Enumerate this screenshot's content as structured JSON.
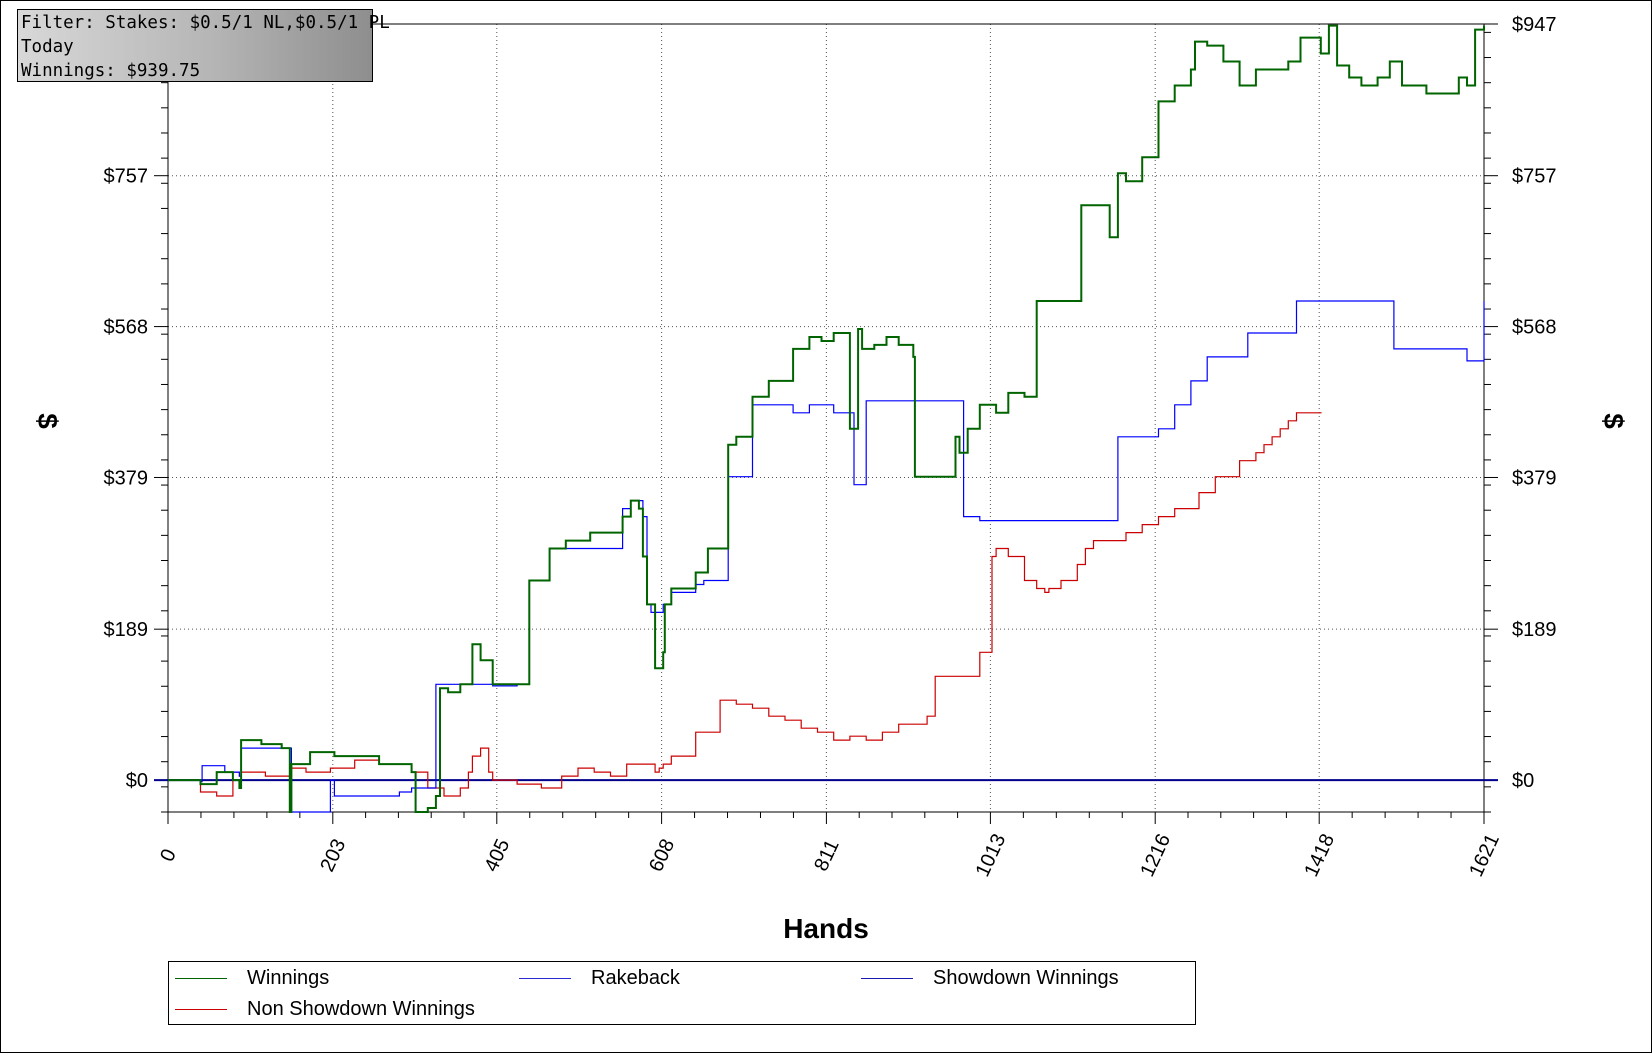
{
  "filter": {
    "line1": "Filter: Stakes: $0.5/1 NL,$0.5/1 PL",
    "line2": "Today",
    "line3": "Winnings: $939.75"
  },
  "colors": {
    "winnings": "#006400",
    "rakeback": "#0000ff",
    "showdown": "#1a1ab0",
    "non_showdown": "#cc0000",
    "zero_line": "#00008b",
    "grid": "#555555"
  },
  "legend": [
    {
      "label": "Winnings",
      "color": "#006400"
    },
    {
      "label": "Rakeback",
      "color": "#2a2ad0"
    },
    {
      "label": "Showdown Winnings",
      "color": "#1a1ab0"
    },
    {
      "label": "Non Showdown Winnings",
      "color": "#cc0000"
    }
  ],
  "chart_data": {
    "type": "line",
    "title": "",
    "xlabel": "Hands",
    "ylabel": "$",
    "xlim": [
      0,
      1621
    ],
    "ylim": [
      -40,
      947
    ],
    "x_ticks": [
      0,
      203,
      405,
      608,
      811,
      1013,
      1216,
      1418,
      1621
    ],
    "y_ticks": [
      0,
      189,
      379,
      568,
      757,
      947
    ],
    "y_tick_labels": [
      "$0",
      "$189",
      "$379",
      "$568",
      "$757",
      "$947"
    ],
    "grid": true,
    "legend_position": "bottom",
    "series": [
      {
        "name": "Winnings",
        "x": [
          0,
          40,
          60,
          80,
          88,
          90,
          115,
          140,
          150,
          152,
          175,
          205,
          260,
          300,
          305,
          320,
          330,
          335,
          345,
          360,
          375,
          385,
          400,
          430,
          445,
          470,
          490,
          520,
          560,
          570,
          580,
          585,
          590,
          600,
          610,
          612,
          620,
          650,
          665,
          690,
          700,
          720,
          740,
          770,
          790,
          805,
          820,
          840,
          850,
          855,
          870,
          885,
          900,
          918,
          920,
          970,
          975,
          985,
          1000,
          1020,
          1035,
          1055,
          1070,
          1105,
          1110,
          1125,
          1160,
          1170,
          1180,
          1190,
          1200,
          1220,
          1240,
          1260,
          1265,
          1280,
          1300,
          1320,
          1340,
          1380,
          1395,
          1420,
          1430,
          1440,
          1455,
          1470,
          1490,
          1505,
          1520,
          1550,
          1580,
          1590,
          1600,
          1610,
          1621
        ],
        "y": [
          0,
          -5,
          10,
          0,
          -10,
          50,
          45,
          40,
          -40,
          20,
          35,
          30,
          20,
          10,
          -40,
          -35,
          -20,
          115,
          110,
          120,
          170,
          150,
          120,
          120,
          250,
          290,
          300,
          310,
          330,
          350,
          340,
          280,
          220,
          140,
          160,
          220,
          240,
          260,
          290,
          420,
          430,
          480,
          500,
          540,
          555,
          550,
          560,
          440,
          565,
          540,
          545,
          555,
          545,
          530,
          380,
          430,
          410,
          440,
          470,
          460,
          485,
          480,
          600,
          600,
          600,
          720,
          680,
          760,
          750,
          750,
          780,
          850,
          870,
          890,
          925,
          920,
          900,
          870,
          890,
          900,
          930,
          910,
          945,
          895,
          880,
          870,
          880,
          900,
          870,
          860,
          860,
          880,
          870,
          940,
          945
        ]
      },
      {
        "name": "Rakeback",
        "x": [
          0,
          40,
          42,
          70,
          88,
          90,
          140,
          152,
          200,
          205,
          250,
          285,
          300,
          330,
          335,
          400,
          430,
          445,
          470,
          560,
          570,
          585,
          590,
          595,
          610,
          615,
          620,
          650,
          660,
          690,
          700,
          720,
          740,
          770,
          790,
          805,
          820,
          845,
          855,
          860,
          870,
          880,
          980,
          1000,
          1160,
          1170,
          1210,
          1220,
          1240,
          1260,
          1280,
          1330,
          1390,
          1395,
          1420,
          1480,
          1510,
          1520,
          1600,
          1610,
          1621
        ],
        "y": [
          0,
          -2,
          18,
          10,
          5,
          40,
          40,
          -40,
          0,
          -20,
          -20,
          -15,
          -10,
          120,
          120,
          118,
          120,
          250,
          290,
          340,
          350,
          330,
          220,
          210,
          220,
          220,
          235,
          245,
          250,
          380,
          380,
          470,
          470,
          460,
          470,
          470,
          460,
          370,
          370,
          475,
          475,
          475,
          330,
          325,
          325,
          430,
          430,
          440,
          470,
          500,
          530,
          560,
          600,
          600,
          600,
          600,
          540,
          540,
          525,
          525,
          600
        ]
      },
      {
        "name": "Non Showdown Winnings",
        "x": [
          0,
          40,
          60,
          80,
          88,
          90,
          120,
          150,
          170,
          200,
          230,
          260,
          280,
          300,
          320,
          340,
          360,
          370,
          375,
          385,
          395,
          400,
          430,
          460,
          485,
          505,
          525,
          545,
          565,
          580,
          600,
          605,
          610,
          620,
          650,
          680,
          700,
          720,
          740,
          760,
          780,
          800,
          820,
          840,
          860,
          880,
          900,
          920,
          935,
          945,
          970,
          1000,
          1010,
          1015,
          1020,
          1035,
          1055,
          1060,
          1070,
          1080,
          1085,
          1100,
          1120,
          1130,
          1140,
          1160,
          1180,
          1200,
          1220,
          1240,
          1270,
          1290,
          1300,
          1320,
          1330,
          1340,
          1350,
          1360,
          1370,
          1380,
          1390,
          1400,
          1410,
          1421
        ],
        "y": [
          0,
          -15,
          -20,
          10,
          5,
          10,
          5,
          15,
          10,
          15,
          25,
          20,
          20,
          10,
          -10,
          -20,
          -10,
          10,
          30,
          40,
          10,
          0,
          -5,
          -10,
          5,
          15,
          10,
          5,
          20,
          20,
          10,
          15,
          20,
          30,
          60,
          100,
          95,
          90,
          80,
          75,
          65,
          60,
          50,
          55,
          50,
          60,
          70,
          70,
          80,
          130,
          130,
          160,
          160,
          280,
          290,
          280,
          250,
          250,
          240,
          235,
          240,
          250,
          270,
          290,
          300,
          300,
          310,
          320,
          330,
          340,
          360,
          380,
          380,
          400,
          400,
          410,
          420,
          430,
          440,
          450,
          460,
          460,
          460,
          460
        ]
      }
    ]
  }
}
